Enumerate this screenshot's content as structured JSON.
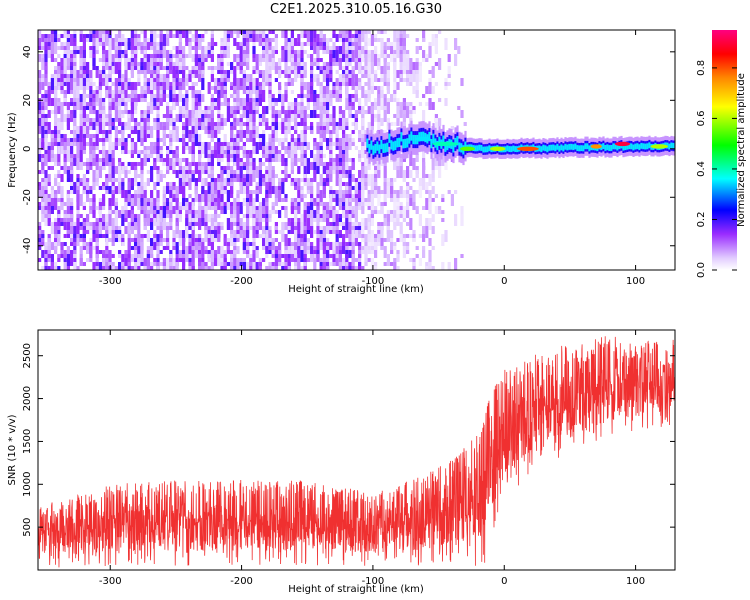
{
  "title": "C2E1.2025.310.05.16.G30",
  "chart_data": [
    {
      "type": "heatmap",
      "xlabel": "Height of straight line (km)",
      "ylabel": "Frequency (Hz)",
      "xlim": [
        -355,
        130
      ],
      "ylim": [
        -50,
        49
      ],
      "xticks": [
        -300,
        -200,
        -100,
        0,
        100
      ],
      "yticks": [
        -40,
        -20,
        0,
        20,
        40
      ],
      "colorbar": {
        "label": "Normalized spectral amplitude",
        "range": [
          0.0,
          0.95
        ],
        "ticks": [
          0.0,
          0.2,
          0.4,
          0.6,
          0.8
        ],
        "colormap": [
          "#ffffff",
          "#e2ccff",
          "#7b00ff",
          "#0000ff",
          "#00ffff",
          "#00ff00",
          "#ffff00",
          "#ff8800",
          "#ff0000",
          "#ff0080"
        ]
      },
      "regions": {
        "noise_band": {
          "x": [
            -355,
            -30
          ],
          "y": [
            -50,
            49
          ],
          "dominant_amplitude": 0.15
        },
        "signal_line": {
          "x": [
            -105,
            130
          ],
          "center_freq": [
            [
              -105,
              1
            ],
            [
              -80,
              3
            ],
            [
              -60,
              4
            ],
            [
              -40,
              2
            ],
            [
              -20,
              0
            ],
            [
              0,
              0
            ],
            [
              100,
              1
            ],
            [
              130,
              1
            ]
          ],
          "peak_amplitude": 0.9
        }
      }
    },
    {
      "type": "line",
      "xlabel": "Height of straight line (km)",
      "ylabel": "SNR (10 * v/v)",
      "xlim": [
        -355,
        130
      ],
      "ylim": [
        0,
        2800
      ],
      "xticks": [
        -300,
        -200,
        -100,
        0,
        100
      ],
      "yticks": [
        500,
        1000,
        1500,
        2000,
        2500
      ],
      "color": "#f03030",
      "series": [
        {
          "x": [
            -355,
            -300,
            -250,
            -200,
            -150,
            -100,
            -50,
            -30,
            -15,
            -10,
            0,
            20,
            40,
            60,
            80,
            100,
            130
          ],
          "min": [
            0,
            50,
            50,
            50,
            50,
            50,
            50,
            50,
            50,
            400,
            800,
            1100,
            1300,
            1400,
            1500,
            1600,
            1700
          ],
          "max": [
            750,
            1000,
            1050,
            1050,
            1050,
            900,
            1200,
            1450,
            1800,
            2100,
            2350,
            2500,
            2600,
            2700,
            2750,
            2650,
            2700
          ]
        }
      ]
    }
  ]
}
